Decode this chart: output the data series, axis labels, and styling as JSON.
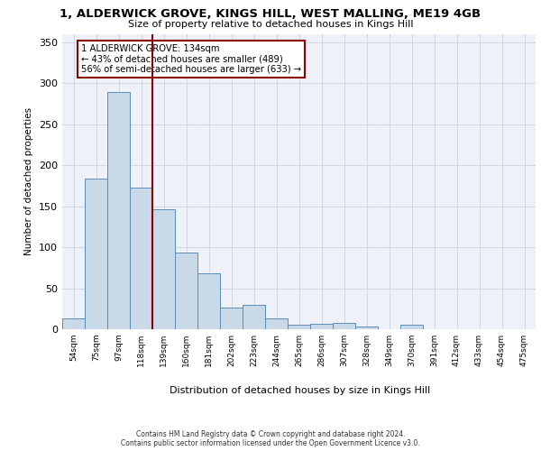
{
  "title1": "1, ALDERWICK GROVE, KINGS HILL, WEST MALLING, ME19 4GB",
  "title2": "Size of property relative to detached houses in Kings Hill",
  "xlabel": "Distribution of detached houses by size in Kings Hill",
  "ylabel": "Number of detached properties",
  "bin_labels": [
    "54sqm",
    "75sqm",
    "97sqm",
    "118sqm",
    "139sqm",
    "160sqm",
    "181sqm",
    "202sqm",
    "223sqm",
    "244sqm",
    "265sqm",
    "286sqm",
    "307sqm",
    "328sqm",
    "349sqm",
    "370sqm",
    "391sqm",
    "412sqm",
    "433sqm",
    "454sqm",
    "475sqm"
  ],
  "bar_values": [
    13,
    184,
    289,
    173,
    146,
    93,
    68,
    26,
    30,
    13,
    6,
    7,
    8,
    3,
    0,
    6,
    0,
    0,
    0,
    0,
    0
  ],
  "bar_color": "#c9d9e8",
  "bar_edge_color": "#5b8db8",
  "vline_color": "#8b0000",
  "vline_pos": 3.5,
  "annotation_text": "1 ALDERWICK GROVE: 134sqm\n← 43% of detached houses are smaller (489)\n56% of semi-detached houses are larger (633) →",
  "annotation_box_color": "white",
  "annotation_box_edge": "#8b0000",
  "grid_color": "#d0d8e8",
  "background_color": "#eef2f8",
  "footer1": "Contains HM Land Registry data © Crown copyright and database right 2024.",
  "footer2": "Contains public sector information licensed under the Open Government Licence v3.0.",
  "ylim": [
    0,
    360
  ],
  "yticks": [
    0,
    50,
    100,
    150,
    200,
    250,
    300,
    350
  ]
}
